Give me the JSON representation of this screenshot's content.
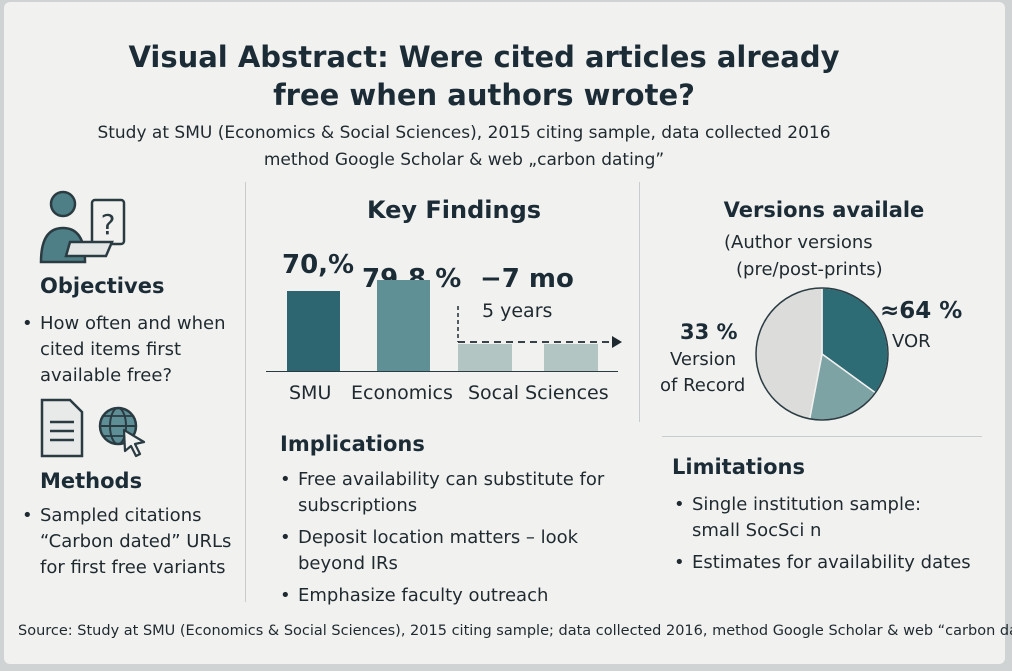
{
  "title": {
    "line1": "Visual Abstract: Were cited articles already",
    "line2": "free when authors wrote?"
  },
  "subtitle": {
    "line1": "Study at SMU (Economics & Social Sciences), 2015 citing sample, data collected 2016",
    "line2": "method Google Scholar & web „carbon dating”"
  },
  "objectives": {
    "heading": "Objectives",
    "items": [
      "How often and when cited items first available free?"
    ],
    "icon": "person-laptop-question-icon"
  },
  "methods": {
    "heading": "Methods",
    "items": [
      "Sampled citations “Carbon dated” URLs for first free variants"
    ],
    "icons": [
      "document-icon",
      "globe-cursor-icon"
    ]
  },
  "key_findings": {
    "heading": "Key Findings",
    "label_smu": "70,%",
    "label_econ": "79,8 %",
    "label_soc": "−7 mo",
    "label_soc_sub": "5 years",
    "cat_smu": "SMU",
    "cat_econ": "Economics",
    "cat_soc": "Socal Sciences"
  },
  "chart_data": [
    {
      "type": "bar",
      "categories": [
        "SMU",
        "Economics",
        "Socal Sciences",
        ""
      ],
      "values": [
        70,
        79.8,
        24,
        24
      ],
      "colors": [
        "#2d6670",
        "#5e9096",
        "#b3c5c3",
        "#b3c5c3"
      ]
    },
    {
      "type": "pie",
      "title": "Versions availale",
      "labels": [
        "VOR",
        "Version of Record",
        ""
      ],
      "values": [
        35,
        18,
        47
      ],
      "colors": [
        "#2d6b75",
        "#7ea3a5",
        "#dcdcda"
      ]
    }
  ],
  "implications": {
    "heading": "Implications",
    "items": [
      "Free availability can substitute for subscriptions",
      "Deposit location matters – look beyond IRs",
      "Emphasize faculty outreach"
    ]
  },
  "versions": {
    "heading": "Versions availale",
    "sub1": "(Author versions",
    "sub2": "(pre/post-prints)",
    "vor_pct": "≈64 %",
    "vor_label": "VOR",
    "vr_pct": "33 %",
    "vr_label1": "Version",
    "vr_label2": "of Record"
  },
  "limitations": {
    "heading": "Limitations",
    "items": [
      "Single institution sample: small SocSci n",
      "Estimates for availability dates"
    ]
  },
  "source": "Source: Study at SMU (Economics & Social Sciences), 2015 citing sample; data collected 2016, method Google Scholar & web “carbon dating”"
}
